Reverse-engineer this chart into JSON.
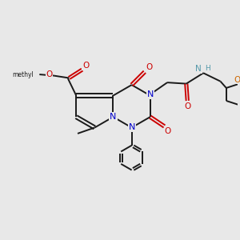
{
  "bg_color": "#e8e8e8",
  "bond_color": "#1a1a1a",
  "nitrogen_color": "#0000cc",
  "oxygen_color": "#cc0000",
  "nh_color": "#5599aa",
  "oxygen_ring_color": "#cc6600",
  "figsize": [
    3.0,
    3.0
  ],
  "dpi": 100,
  "bond_lw": 1.4,
  "font_size": 7.0,
  "xlim": [
    0,
    10
  ],
  "ylim": [
    0,
    10
  ]
}
